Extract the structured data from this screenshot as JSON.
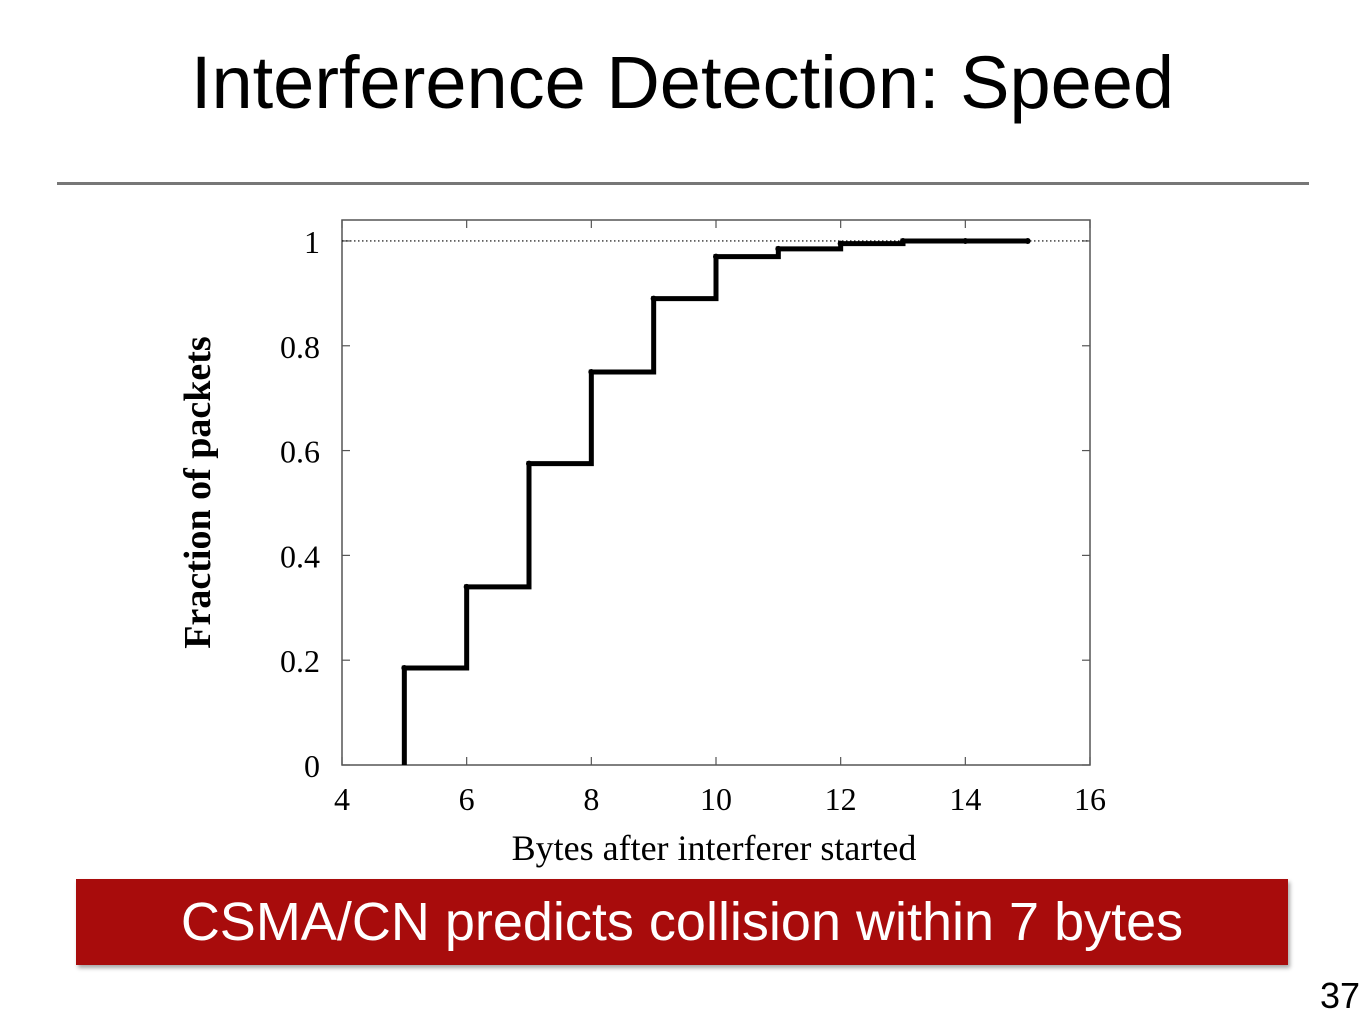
{
  "slide": {
    "title": "Interference Detection: Speed",
    "callout": "CSMA/CN predicts collision within 7 bytes",
    "page_number": "37"
  },
  "colors": {
    "callout_bg": "#a80c0c",
    "callout_text": "#ffffff",
    "rule": "#777777",
    "series": "#000000"
  },
  "chart_data": {
    "type": "line",
    "step": true,
    "title": "",
    "xlabel": "Bytes after interferer started",
    "ylabel": "Fraction of packets",
    "xlim": [
      4,
      16
    ],
    "ylim": [
      0,
      1.04
    ],
    "xticks": [
      4,
      6,
      8,
      10,
      12,
      14,
      16
    ],
    "yticks": [
      0,
      0.2,
      0.4,
      0.6,
      0.8,
      1
    ],
    "xtick_labels": [
      "4",
      "6",
      "8",
      "10",
      "12",
      "14",
      "16"
    ],
    "ytick_labels": [
      "0",
      "0.2",
      "0.4",
      "0.6",
      "0.8",
      "1"
    ],
    "grid": false,
    "reference_line": {
      "y": 1,
      "style": "dotted"
    },
    "series": [
      {
        "x": [
          5,
          6,
          7,
          8,
          9,
          10,
          11,
          12,
          13,
          14,
          15
        ],
        "y": [
          0.185,
          0.34,
          0.575,
          0.75,
          0.89,
          0.97,
          0.985,
          0.995,
          1.0,
          1.0,
          1.0
        ]
      }
    ]
  }
}
